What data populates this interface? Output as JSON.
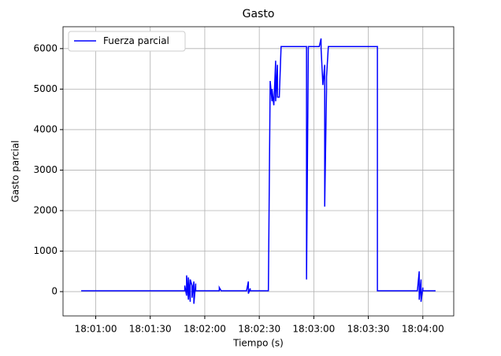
{
  "chart_data": {
    "type": "line",
    "title": "Gasto",
    "x_label": "Tiempo (s)",
    "y_label": "Gasto parcial",
    "x": [
      "18:00:52",
      "18:01:49",
      "18:01:49",
      "18:01:50",
      "18:01:50",
      "18:01:51",
      "18:01:51",
      "18:01:52",
      "18:01:52",
      "18:01:53",
      "18:01:53",
      "18:01:54",
      "18:01:54",
      "18:01:55",
      "18:01:55",
      "18:02:08",
      "18:02:08",
      "18:02:09",
      "18:02:23",
      "18:02:24",
      "18:02:24",
      "18:02:25",
      "18:02:25",
      "18:02:35",
      "18:02:36",
      "18:02:37",
      "18:02:37",
      "18:02:38",
      "18:02:39",
      "18:02:39",
      "18:02:40",
      "18:02:40",
      "18:02:41",
      "18:02:42",
      "18:02:56",
      "18:02:56",
      "18:02:57",
      "18:03:03",
      "18:03:04",
      "18:03:04",
      "18:03:05",
      "18:03:06",
      "18:03:06",
      "18:03:07",
      "18:03:07",
      "18:03:08",
      "18:03:35",
      "18:03:35",
      "18:03:57",
      "18:03:58",
      "18:03:58",
      "18:03:59",
      "18:03:59",
      "18:04:00",
      "18:04:00",
      "18:04:07"
    ],
    "series": [
      {
        "name": "Fuerza parcial",
        "color": "#0000ff",
        "values": [
          20,
          20,
          150,
          -100,
          400,
          -200,
          350,
          -250,
          300,
          150,
          -150,
          250,
          -300,
          200,
          20,
          20,
          100,
          20,
          20,
          250,
          -50,
          80,
          20,
          20,
          5200,
          4700,
          5000,
          4600,
          5700,
          4700,
          5600,
          4800,
          4800,
          6050,
          6050,
          300,
          6050,
          6050,
          6250,
          6000,
          5100,
          5600,
          2100,
          5000,
          5300,
          6050,
          6050,
          20,
          20,
          500,
          -200,
          300,
          -250,
          100,
          20,
          20
        ]
      }
    ],
    "xlim": [
      "18:00:42",
      "18:04:17"
    ],
    "xticks": [
      "18:01:00",
      "18:01:30",
      "18:02:00",
      "18:02:30",
      "18:03:00",
      "18:03:30",
      "18:04:00"
    ],
    "ylim": [
      -600,
      6540
    ],
    "yticks": [
      0,
      1000,
      2000,
      3000,
      4000,
      5000,
      6000
    ],
    "grid": true,
    "legend": "upper left"
  }
}
